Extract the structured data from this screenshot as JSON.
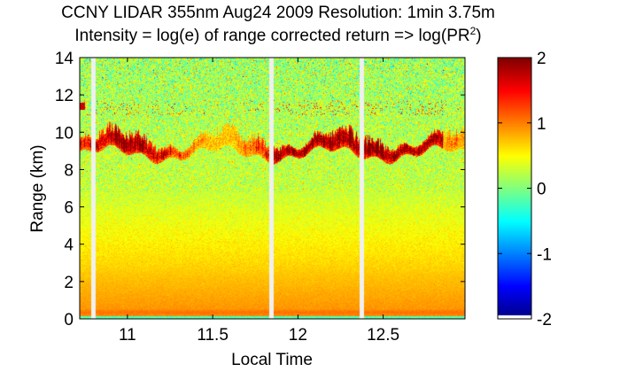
{
  "chart_data": {
    "type": "heatmap",
    "title": "CCNY LIDAR 355nm Aug24 2009 Resolution: 1min 3.75m",
    "subtitle_prefix": "Intensity = log(e) of range corrected return => log(PR",
    "subtitle_superscript": "2",
    "subtitle_suffix": ")",
    "xlabel": "Local Time",
    "ylabel": "Range (km)",
    "xlim": [
      10.72,
      12.98
    ],
    "ylim": [
      0,
      14
    ],
    "x_ticks": [
      11,
      11.5,
      12,
      12.5
    ],
    "x_tick_labels": [
      "11",
      "11.5",
      "12",
      "12.5"
    ],
    "y_ticks": [
      0,
      2,
      4,
      6,
      8,
      10,
      12,
      14
    ],
    "y_tick_labels": [
      "0",
      "2",
      "4",
      "6",
      "8",
      "10",
      "12",
      "14"
    ],
    "colorbar": {
      "range": [
        -2,
        2
      ],
      "ticks": [
        2,
        1,
        0,
        -1,
        -2
      ],
      "tick_labels": [
        "2",
        "1",
        "0",
        "-1",
        "-2"
      ],
      "colormap": "jet",
      "colors": [
        "#00008f",
        "#0000ff",
        "#0080ff",
        "#00ffff",
        "#80ff80",
        "#ffff00",
        "#ff8000",
        "#ff0000",
        "#800000"
      ]
    },
    "data_gaps_time": [
      10.8,
      11.84,
      12.37
    ],
    "gap_color": "#f0f0f0",
    "cloud_layer": {
      "base_km": 8.8,
      "top_km": 11.3,
      "time_range": [
        10.72,
        12.85
      ],
      "typical_value": 1.1,
      "max_value": 1.9
    },
    "near_surface_value": 0.95,
    "free_troposphere_value": 0.1
  }
}
